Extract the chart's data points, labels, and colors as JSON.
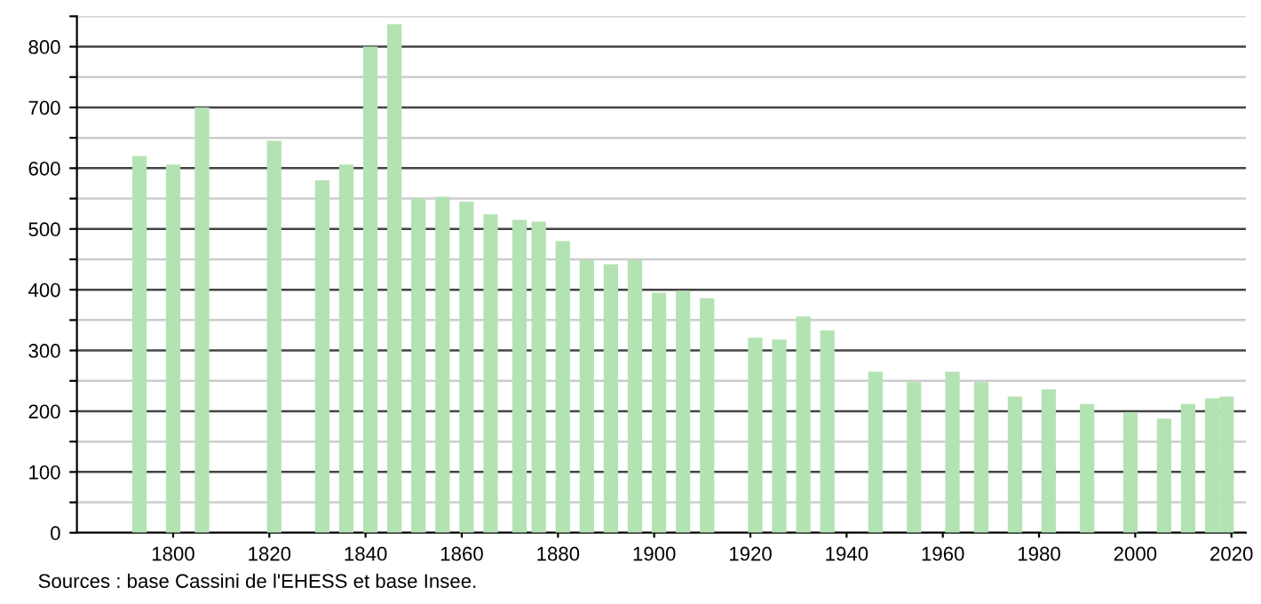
{
  "chart_data": {
    "type": "bar",
    "x": [
      1793,
      1800,
      1806,
      1821,
      1831,
      1836,
      1841,
      1846,
      1851,
      1856,
      1861,
      1866,
      1872,
      1876,
      1881,
      1886,
      1891,
      1896,
      1901,
      1906,
      1911,
      1921,
      1926,
      1931,
      1936,
      1946,
      1954,
      1962,
      1968,
      1975,
      1982,
      1990,
      1999,
      2006,
      2011,
      2016,
      2019
    ],
    "values": [
      620,
      606,
      700,
      645,
      580,
      606,
      800,
      837,
      550,
      553,
      545,
      524,
      515,
      512,
      480,
      449,
      442,
      449,
      395,
      398,
      386,
      321,
      318,
      356,
      333,
      265,
      248,
      265,
      248,
      224,
      236,
      212,
      198,
      188,
      212,
      221,
      224
    ],
    "color": "#b3e3b3",
    "xlim": [
      1780,
      2023
    ],
    "xticks": [
      1800,
      1820,
      1840,
      1860,
      1880,
      1900,
      1920,
      1940,
      1960,
      1980,
      2000,
      2020
    ],
    "ylim": [
      0,
      850
    ],
    "yticks": [
      0,
      {
        "value": 50,
        "label": null
      },
      100,
      {
        "value": 150,
        "label": null
      },
      200,
      {
        "value": 250,
        "label": null
      },
      300,
      {
        "value": 350,
        "label": null
      },
      400,
      {
        "value": 450,
        "label": null
      },
      500,
      {
        "value": 550,
        "label": null
      },
      600,
      {
        "value": 650,
        "label": null
      },
      700,
      {
        "value": 750,
        "label": null
      },
      800,
      {
        "value": 850,
        "label": null
      }
    ],
    "grid": "y",
    "annotations": [
      "Sources : base Cassini de l'EHESS et base Insee."
    ]
  }
}
